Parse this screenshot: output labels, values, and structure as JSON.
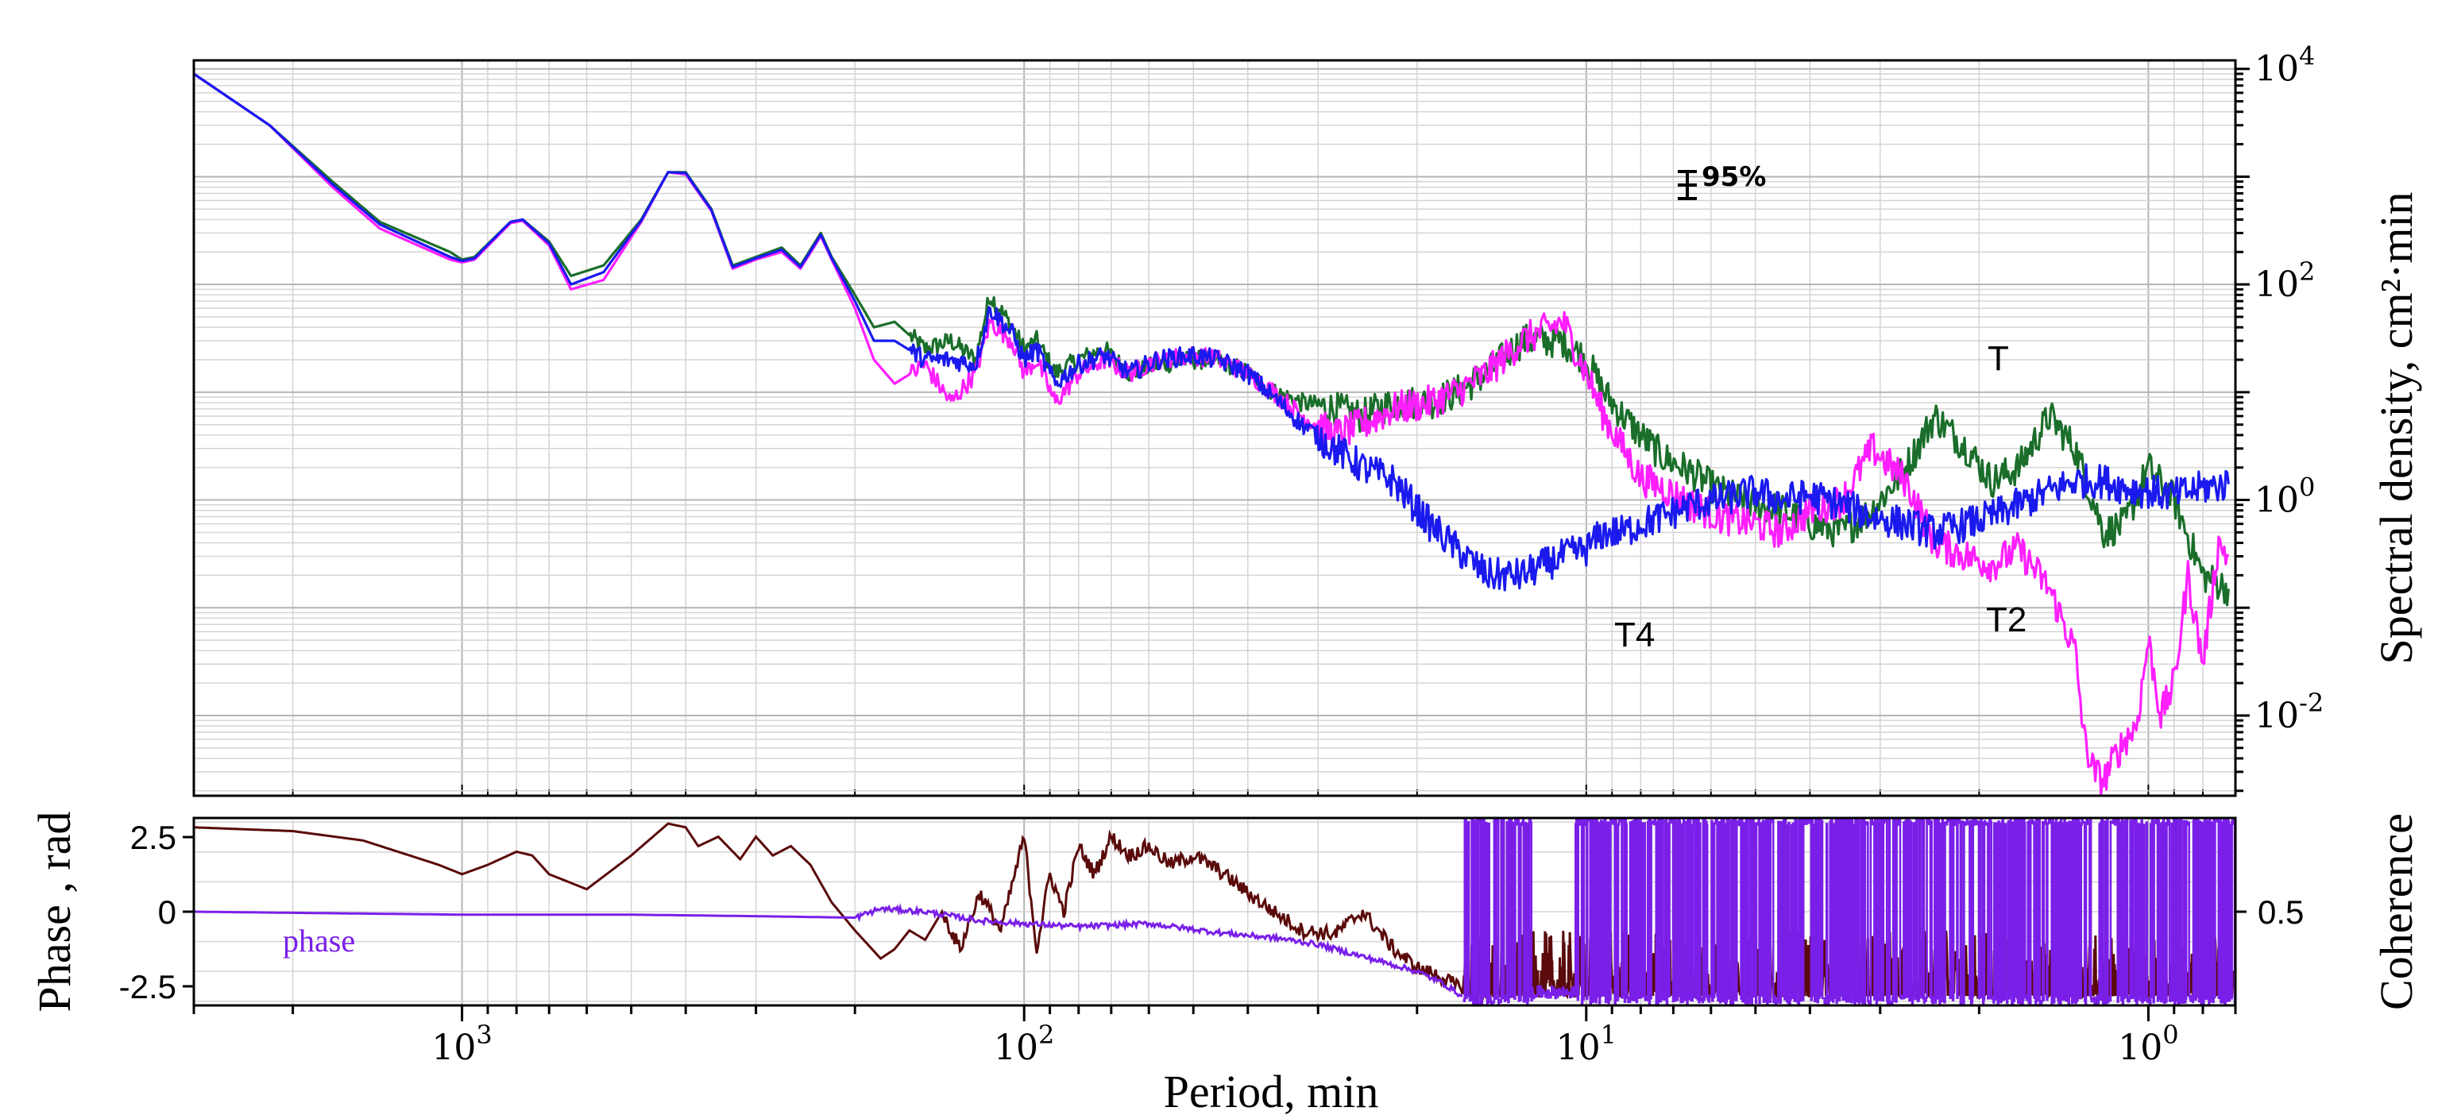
{
  "chart_data": [
    {
      "type": "line",
      "panel": "spectra",
      "xscale": "log",
      "yscale": "log",
      "xlim": [
        3000,
        0.7
      ],
      "ylim": [
        0.0018,
        12000
      ],
      "ylabel": "Spectral density, cm²·min",
      "ytick_labels": [
        {
          "base": "10",
          "exp": "-2",
          "value": 0.01
        },
        {
          "base": "10",
          "exp": "0",
          "value": 1
        },
        {
          "base": "10",
          "exp": "2",
          "value": 100
        },
        {
          "base": "10",
          "exp": "4",
          "value": 10000
        }
      ],
      "confidence_label": "95%",
      "annotations": [
        {
          "text": "T4",
          "x": 8.5,
          "y": 0.11
        },
        {
          "text": "T2",
          "x": 1.85,
          "y": 0.12
        },
        {
          "text": "T",
          "x": 1.9,
          "y": 14
        }
      ],
      "series": [
        {
          "name": "green",
          "color": "#1a6e2a",
          "x": [
            3000,
            2200,
            1700,
            1400,
            1050,
            1000,
            950,
            820,
            780,
            700,
            640,
            560,
            480,
            430,
            400,
            360,
            330,
            300,
            270,
            250,
            230,
            220,
            200,
            185,
            170,
            150,
            135,
            122,
            115,
            105,
            100,
            95,
            88,
            80,
            72,
            65,
            58,
            50,
            45,
            40,
            36,
            32,
            28,
            25,
            22,
            19,
            17,
            15,
            13,
            11,
            10,
            9.3,
            8.6,
            8,
            7.3,
            6.5,
            5.8,
            5,
            4.5,
            4,
            3.5,
            3.1,
            2.7,
            2.4,
            2.1,
            1.9,
            1.7,
            1.5,
            1.35,
            1.2,
            1.1,
            1.0,
            0.9,
            0.8,
            0.72
          ],
          "y": [
            9000,
            3000,
            900,
            380,
            200,
            170,
            180,
            380,
            400,
            250,
            120,
            150,
            400,
            1100,
            1100,
            500,
            150,
            180,
            220,
            150,
            300,
            180,
            80,
            40,
            45,
            25,
            30,
            20,
            80,
            40,
            25,
            30,
            15,
            20,
            25,
            15,
            18,
            20,
            20,
            15,
            10,
            8,
            7,
            6,
            8,
            8,
            10,
            15,
            30,
            30,
            20,
            10,
            6,
            4,
            2.5,
            1.8,
            1.2,
            0.9,
            0.8,
            0.6,
            0.5,
            0.8,
            2,
            6,
            3,
            1.5,
            2,
            6,
            3,
            0.5,
            0.6,
            2,
            1,
            0.2,
            0.15
          ]
        },
        {
          "name": "magenta",
          "color": "#ff1fff",
          "x": [
            3000,
            2200,
            1700,
            1400,
            1050,
            1000,
            950,
            820,
            780,
            700,
            640,
            560,
            480,
            430,
            400,
            360,
            330,
            300,
            270,
            250,
            230,
            220,
            200,
            185,
            170,
            150,
            135,
            122,
            115,
            105,
            100,
            95,
            88,
            80,
            72,
            65,
            58,
            50,
            45,
            40,
            36,
            32,
            28,
            25,
            22,
            19,
            17,
            15,
            13,
            11,
            10,
            9.3,
            8.6,
            8,
            7.3,
            6.5,
            5.8,
            5,
            4.5,
            4,
            3.5,
            3.1,
            2.7,
            2.4,
            2.1,
            1.9,
            1.7,
            1.5,
            1.35,
            1.3,
            1.25,
            1.2,
            1.15,
            1.1,
            1.05,
            1.0,
            0.95,
            0.9,
            0.85,
            0.8,
            0.75,
            0.72
          ],
          "y": [
            9000,
            3000,
            800,
            330,
            170,
            160,
            170,
            370,
            390,
            230,
            90,
            110,
            380,
            1100,
            1050,
            480,
            140,
            170,
            200,
            140,
            280,
            170,
            60,
            20,
            12,
            18,
            8,
            15,
            45,
            30,
            15,
            20,
            8,
            15,
            20,
            15,
            20,
            22,
            20,
            15,
            10,
            6,
            4,
            5,
            7,
            8,
            10,
            15,
            30,
            45,
            15,
            6,
            3,
            1.6,
            1.3,
            0.9,
            0.7,
            0.6,
            0.5,
            0.8,
            1,
            3,
            1.5,
            0.4,
            0.3,
            0.25,
            0.35,
            0.15,
            0.04,
            0.006,
            0.003,
            0.0025,
            0.004,
            0.006,
            0.008,
            0.05,
            0.01,
            0.02,
            0.2,
            0.03,
            0.4,
            0.3
          ]
        },
        {
          "name": "blue",
          "color": "#1a1aee",
          "x": [
            3000,
            2200,
            1700,
            1400,
            1050,
            1000,
            950,
            820,
            780,
            700,
            640,
            560,
            480,
            430,
            400,
            360,
            330,
            300,
            270,
            250,
            230,
            220,
            200,
            185,
            170,
            150,
            135,
            122,
            115,
            105,
            100,
            95,
            88,
            80,
            72,
            65,
            58,
            50,
            45,
            40,
            36,
            32,
            28,
            25,
            22,
            19,
            17,
            15,
            13,
            11,
            10,
            9.3,
            8.6,
            8,
            7.3,
            6.5,
            5.8,
            5,
            4.5,
            4,
            3.5,
            3.1,
            2.7,
            2.4,
            2.1,
            1.9,
            1.7,
            1.5,
            1.35,
            1.2,
            1.1,
            1.0,
            0.9,
            0.8,
            0.72
          ],
          "y": [
            9000,
            3000,
            850,
            360,
            180,
            165,
            175,
            380,
            400,
            240,
            100,
            130,
            390,
            1100,
            1080,
            490,
            145,
            175,
            210,
            145,
            290,
            175,
            70,
            30,
            30,
            20,
            20,
            18,
            60,
            35,
            20,
            25,
            12,
            18,
            22,
            15,
            20,
            22,
            20,
            15,
            9,
            5,
            3,
            2,
            1.5,
            0.6,
            0.35,
            0.2,
            0.2,
            0.3,
            0.35,
            0.5,
            0.5,
            0.6,
            0.7,
            0.9,
            1.0,
            1.2,
            1.0,
            1.1,
            0.9,
            0.7,
            0.6,
            0.5,
            0.6,
            0.7,
            0.9,
            1.2,
            1.5,
            1.5,
            1.3,
            1.2,
            1.1,
            1.3,
            1.4
          ]
        }
      ]
    },
    {
      "type": "line",
      "panel": "phase_coherence",
      "xscale": "log",
      "xlim": [
        3000,
        0.7
      ],
      "xlabel": "Period, min",
      "xtick_labels": [
        {
          "base": "10",
          "exp": "3",
          "value": 1000
        },
        {
          "base": "10",
          "exp": "2",
          "value": 100
        },
        {
          "base": "10",
          "exp": "1",
          "value": 10
        },
        {
          "base": "10",
          "exp": "0",
          "value": 1
        }
      ],
      "ylabel_left": "Phase , rad",
      "ylabel_right": "Coherence",
      "ylim_left": [
        -3.14,
        3.14
      ],
      "ytick_labels_left": [
        {
          "text": "2.5",
          "value": 2.5
        },
        {
          "text": "0",
          "value": 0
        },
        {
          "text": "-2.5",
          "value": -2.5
        }
      ],
      "ytick_labels_right": [
        {
          "text": "0.5",
          "value": 0.5
        }
      ],
      "series_label": "phase",
      "series": [
        {
          "name": "phase",
          "color": "#7a1fe8",
          "x": [
            3000,
            1000,
            500,
            300,
            200,
            180,
            150,
            120,
            100,
            80,
            60,
            45,
            35,
            30,
            25,
            20,
            18,
            17,
            16.5
          ],
          "y": [
            0,
            -0.1,
            -0.1,
            -0.15,
            -0.2,
            0.1,
            0,
            -0.3,
            -0.4,
            -0.5,
            -0.4,
            -0.7,
            -0.9,
            -1.1,
            -1.5,
            -2.0,
            -2.4,
            -2.7,
            -2.9
          ]
        },
        {
          "name": "coherence",
          "color": "#5a0a0a",
          "x": [
            3000,
            2000,
            1500,
            1100,
            1000,
            900,
            800,
            750,
            700,
            600,
            500,
            430,
            400,
            380,
            350,
            320,
            300,
            280,
            260,
            240,
            220,
            200,
            180,
            170,
            160,
            150,
            140,
            130,
            120,
            110,
            100,
            95,
            90,
            85,
            80,
            75,
            70,
            65,
            60,
            55,
            50,
            45,
            40,
            36,
            32,
            28,
            25,
            22,
            20,
            18,
            17,
            16.5
          ],
          "y": [
            0.95,
            0.93,
            0.88,
            0.75,
            0.7,
            0.75,
            0.82,
            0.8,
            0.7,
            0.62,
            0.8,
            0.97,
            0.95,
            0.85,
            0.9,
            0.78,
            0.9,
            0.8,
            0.85,
            0.75,
            0.55,
            0.4,
            0.25,
            0.3,
            0.4,
            0.35,
            0.5,
            0.3,
            0.6,
            0.4,
            0.9,
            0.3,
            0.7,
            0.5,
            0.85,
            0.7,
            0.9,
            0.8,
            0.85,
            0.75,
            0.8,
            0.72,
            0.6,
            0.5,
            0.4,
            0.38,
            0.5,
            0.3,
            0.2,
            0.15,
            0.1,
            0.1
          ]
        }
      ]
    }
  ]
}
